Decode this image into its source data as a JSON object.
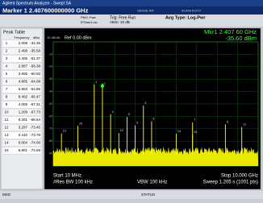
{
  "title_bar": "Agilent Spectrum Analyzer - Swept SA",
  "marker_bar": "Marker 1 2.407600000000 GHz",
  "settings": {
    "sense": "SENSE:INT",
    "align": "ALIGN AUTO",
    "pno": "PNO: Fast",
    "ifgain": "IFGain:Low",
    "trig": "Trig: Free Run",
    "atten": "Atten: 10 dB",
    "avg": "Avg Type: Log-Pwr"
  },
  "peak_table": {
    "title": "Peak Table",
    "columns": [
      "Frequency",
      "dBm"
    ],
    "rows": [
      [
        "1",
        "2.008",
        "-34.35"
      ],
      [
        "2",
        "2.408",
        "-35.58"
      ],
      [
        "3",
        "4.406",
        "-51.37"
      ],
      [
        "4",
        "2.807",
        "-58.38"
      ],
      [
        "5",
        "3.606",
        "-60.50"
      ],
      [
        "6",
        "4.805",
        "-64.08"
      ],
      [
        "7",
        "6.803",
        "-64.85"
      ],
      [
        "8",
        "8.402",
        "-66.47"
      ],
      [
        "9",
        "4.006",
        "-67.31"
      ],
      [
        "10",
        "1.209",
        "-67.73"
      ],
      [
        "11",
        "9.201",
        "-68.64"
      ],
      [
        "12",
        "3.207",
        "-73.45"
      ],
      [
        "13",
        "0.410",
        "-73.78"
      ],
      [
        "14",
        "6.004",
        "-74.00"
      ],
      [
        "15",
        "6.801",
        "-74.69"
      ]
    ]
  },
  "graph": {
    "scale": "10 dB/div",
    "ref": "Ref 0.00 dBm",
    "marker_freq": "Mkr1 2.407 60 GHz",
    "marker_amp": "-35.60 dBm",
    "ylim": [
      -100,
      0
    ],
    "yticks": [
      -10,
      -20,
      -30,
      -40,
      -50,
      -60,
      -70,
      -80,
      -90
    ],
    "xlim": [
      0.01,
      10
    ],
    "start": "Start 10 MHz",
    "stop": "Stop 10.000 GHz",
    "rbw": "#Res BW 100 kHz",
    "vbw": "VBW 100 kHz",
    "sweep": "Sweep 1.205 s (1001 pts)"
  },
  "status": {
    "msg": "MSG",
    "status": "STATUS"
  }
}
